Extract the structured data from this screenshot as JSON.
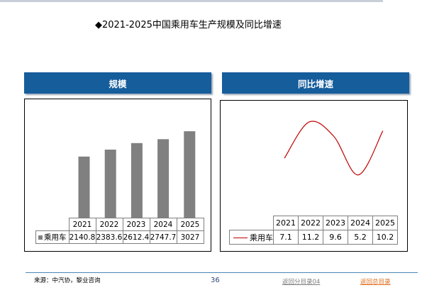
{
  "title": "◆2021-2025中国乘用车生产规模及同比增速",
  "source": "来源：中汽协，黎业咨询",
  "page_number": "36",
  "nav": {
    "back_section": "返回分目录04",
    "back_main": "返回总目录"
  },
  "colors": {
    "header_bg": "#165d9c",
    "bar": "#808080",
    "line": "#c00000",
    "link_gray": "#7f7f7f",
    "link_orange": "#e07020"
  },
  "chart_data": [
    {
      "type": "bar",
      "title": "规模",
      "categories": [
        "2021",
        "2022",
        "2023",
        "2024",
        "2025"
      ],
      "series": [
        {
          "name": "乘用车",
          "values": [
            2140.8,
            2383.6,
            2612.4,
            2747.7,
            3027
          ]
        }
      ],
      "value_labels": [
        "2140.8",
        "2383.6",
        "2612.4",
        "2747.7",
        "3027"
      ],
      "ylim": [
        0,
        3600
      ],
      "legend": "data-table"
    },
    {
      "type": "line",
      "title": "同比增速",
      "categories": [
        "2021",
        "2022",
        "2023",
        "2024",
        "2025"
      ],
      "series": [
        {
          "name": "乘用车",
          "values": [
            7.1,
            11.2,
            9.6,
            5.2,
            10.2
          ]
        }
      ],
      "value_labels": [
        "7.1",
        "11.2",
        "9.6",
        "5.2",
        "10.2"
      ],
      "ylim": [
        0,
        14
      ],
      "legend": "data-table"
    }
  ]
}
